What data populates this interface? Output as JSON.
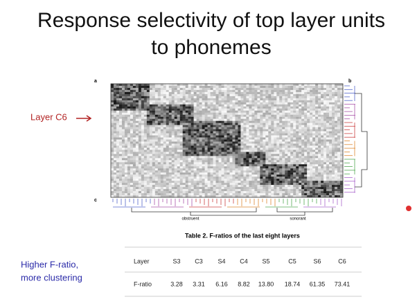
{
  "title": {
    "lines": [
      "Response selectivity of top layer units",
      "to phonemes"
    ]
  },
  "figure": {
    "panel_labels": [
      "a",
      "b",
      "c"
    ],
    "pointer": "Layer C6",
    "groups": [
      "obstruent",
      "sonorant"
    ]
  },
  "note": {
    "lines": [
      "Higher F-ratio,",
      "more clustering"
    ]
  },
  "table": {
    "caption": "Table 2. F-ratios of the last eight layers",
    "rows": [
      [
        "Layer",
        "S3",
        "C3",
        "S4",
        "C4",
        "S5",
        "C5",
        "S6",
        "C6"
      ],
      [
        "F-ratio",
        "3.28",
        "3.31",
        "6.16",
        "8.82",
        "13.80",
        "18.74",
        "61.35",
        "73.41"
      ]
    ]
  }
}
